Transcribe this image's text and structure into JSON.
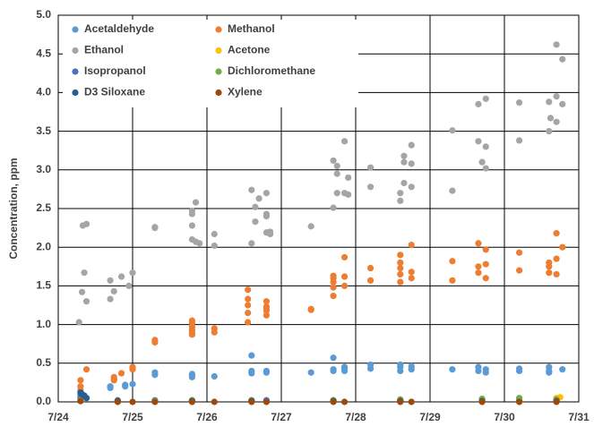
{
  "chart_data": {
    "type": "scatter",
    "y_label": "Concentration, ppm",
    "xlim": [
      0,
      7
    ],
    "xticks": [
      {
        "value": 0,
        "label": "7/24"
      },
      {
        "value": 1,
        "label": "7/25"
      },
      {
        "value": 2,
        "label": "7/26"
      },
      {
        "value": 3,
        "label": "7/27"
      },
      {
        "value": 4,
        "label": "7/28"
      },
      {
        "value": 5,
        "label": "7/29"
      },
      {
        "value": 6,
        "label": "7/30"
      },
      {
        "value": 7,
        "label": "7/31"
      }
    ],
    "ylim": [
      0,
      5
    ],
    "yticks": [
      {
        "value": 0,
        "label": "0.0"
      },
      0.5,
      {
        "value": 1,
        "label": "1.0"
      },
      1.5,
      {
        "value": 2,
        "label": "2.0"
      },
      2.5,
      {
        "value": 3,
        "label": "3.0"
      },
      3.5,
      {
        "value": 4,
        "label": "4.0"
      },
      4.5,
      {
        "value": 5,
        "label": "5.0"
      }
    ],
    "grid": true,
    "legend": "upper-left",
    "series": [
      {
        "name": "Acetaldehyde",
        "color": "#5b9bd5",
        "x": [
          0.3,
          0.3,
          0.7,
          0.7,
          0.9,
          0.9,
          1.0,
          1.3,
          1.3,
          1.8,
          1.8,
          1.8,
          2.1,
          2.6,
          2.6,
          2.6,
          2.8,
          2.8,
          3.4,
          3.7,
          3.7,
          3.7,
          3.85,
          3.85,
          3.85,
          4.2,
          4.2,
          4.6,
          4.6,
          4.6,
          4.75,
          4.75,
          5.3,
          5.65,
          5.65,
          5.75,
          5.75,
          6.2,
          6.2,
          6.6,
          6.6,
          6.6,
          6.78
        ],
        "values": [
          0.05,
          0.1,
          0.18,
          0.2,
          0.22,
          0.2,
          0.23,
          0.35,
          0.38,
          0.35,
          0.32,
          0.36,
          0.33,
          0.6,
          0.37,
          0.4,
          0.38,
          0.4,
          0.38,
          0.57,
          0.4,
          0.42,
          0.43,
          0.45,
          0.4,
          0.48,
          0.43,
          0.45,
          0.4,
          0.48,
          0.42,
          0.46,
          0.42,
          0.45,
          0.4,
          0.42,
          0.38,
          0.43,
          0.4,
          0.4,
          0.38,
          0.45,
          0.42
        ]
      },
      {
        "name": "Methanol",
        "color": "#ed7d31",
        "x": [
          0.38,
          0.3,
          0.3,
          0.3,
          0.75,
          0.75,
          0.75,
          0.85,
          1.0,
          1.0,
          1.3,
          1.3,
          1.8,
          1.8,
          1.8,
          1.8,
          1.8,
          1.8,
          2.1,
          2.1,
          2.55,
          2.55,
          2.55,
          2.55,
          2.55,
          2.8,
          2.8,
          2.8,
          2.8,
          2.8,
          3.4,
          3.4,
          3.7,
          3.7,
          3.7,
          3.7,
          3.7,
          3.85,
          3.85,
          3.85,
          4.2,
          4.2,
          4.6,
          4.6,
          4.6,
          4.6,
          4.6,
          4.75,
          4.75,
          4.75,
          5.3,
          5.3,
          5.65,
          5.65,
          5.65,
          5.75,
          5.75,
          5.75,
          6.2,
          6.2,
          6.6,
          6.6,
          6.6,
          6.7,
          6.7,
          6.7,
          6.78
        ],
        "values": [
          0.42,
          0.28,
          0.2,
          0.15,
          0.32,
          0.3,
          0.28,
          0.37,
          0.42,
          0.45,
          0.8,
          0.77,
          0.93,
          1.02,
          0.97,
          0.87,
          0.9,
          1.05,
          0.95,
          0.9,
          1.45,
          1.15,
          1.03,
          1.25,
          1.33,
          1.12,
          1.2,
          1.23,
          1.3,
          1.18,
          1.2,
          1.19,
          1.63,
          1.37,
          1.48,
          1.55,
          1.6,
          1.87,
          1.5,
          1.62,
          1.73,
          1.57,
          1.55,
          1.73,
          1.9,
          1.65,
          1.8,
          2.03,
          1.6,
          1.68,
          1.82,
          1.57,
          2.05,
          1.75,
          1.67,
          1.97,
          1.78,
          1.6,
          1.93,
          1.7,
          1.8,
          1.75,
          1.67,
          2.18,
          1.85,
          1.65,
          2.0
        ]
      },
      {
        "name": "Ethanol",
        "color": "#a5a5a5",
        "x": [
          0.28,
          0.32,
          0.38,
          0.35,
          0.33,
          0.38,
          0.7,
          0.7,
          0.75,
          0.85,
          0.95,
          1.0,
          1.3,
          1.3,
          1.8,
          1.8,
          1.8,
          1.8,
          1.85,
          1.85,
          1.9,
          2.1,
          2.1,
          2.6,
          2.6,
          2.65,
          2.65,
          2.7,
          2.8,
          2.8,
          2.8,
          2.8,
          2.85,
          2.85,
          3.4,
          3.7,
          3.7,
          3.75,
          3.75,
          3.75,
          3.85,
          3.9,
          3.85,
          3.9,
          4.2,
          4.2,
          4.6,
          4.6,
          4.65,
          4.65,
          4.65,
          4.75,
          4.75,
          4.75,
          5.3,
          5.3,
          5.65,
          5.65,
          5.7,
          5.75,
          5.75,
          5.75,
          6.2,
          6.2,
          6.6,
          6.6,
          6.62,
          6.7,
          6.7,
          6.7,
          6.78,
          6.78
        ],
        "values": [
          1.03,
          1.42,
          1.3,
          1.67,
          2.28,
          2.3,
          1.57,
          1.33,
          1.43,
          1.62,
          1.5,
          1.67,
          2.26,
          2.25,
          2.43,
          2.47,
          2.28,
          2.1,
          2.58,
          2.07,
          2.05,
          2.17,
          2.02,
          2.74,
          2.05,
          2.33,
          2.52,
          2.63,
          2.4,
          2.19,
          2.7,
          2.43,
          2.17,
          2.2,
          2.27,
          3.12,
          2.51,
          2.7,
          2.95,
          3.05,
          3.37,
          2.9,
          2.7,
          2.68,
          3.03,
          2.78,
          2.6,
          2.7,
          2.83,
          3.1,
          3.18,
          3.32,
          2.78,
          3.08,
          3.51,
          2.73,
          3.85,
          3.37,
          3.1,
          3.92,
          3.3,
          3.02,
          3.87,
          3.38,
          3.88,
          3.5,
          3.67,
          4.62,
          3.95,
          3.62,
          4.43,
          3.85
        ]
      },
      {
        "name": "Acetone",
        "color": "#ffc000",
        "x": [
          0.3,
          0.8,
          1.3,
          1.8,
          2.6,
          3.7,
          4.6,
          5.7,
          6.2,
          6.7,
          6.75
        ],
        "values": [
          0.01,
          0.01,
          0.01,
          0.01,
          0.02,
          0.02,
          0.03,
          0.03,
          0.02,
          0.05,
          0.06
        ]
      },
      {
        "name": "Isopropanol",
        "color": "#4472c4",
        "x": [
          0.3,
          0.35,
          0.8,
          1.3,
          1.8,
          2.6,
          2.8,
          3.7,
          4.6,
          5.7,
          6.2,
          6.7
        ],
        "values": [
          0.06,
          0.08,
          0.02,
          0.02,
          0.02,
          0.02,
          0.02,
          0.02,
          0.02,
          0.02,
          0.02,
          0.02
        ]
      },
      {
        "name": "Dichloromethane",
        "color": "#70ad47",
        "x": [
          0.3,
          0.8,
          1.3,
          1.8,
          2.6,
          3.7,
          4.6,
          5.7,
          6.2,
          6.7
        ],
        "values": [
          0.02,
          0.01,
          0.01,
          0.02,
          0.02,
          0.02,
          0.03,
          0.04,
          0.05,
          0.03
        ]
      },
      {
        "name": "D3 Siloxane",
        "color": "#255e91",
        "x": [
          0.3,
          0.32,
          0.35,
          0.38,
          0.8,
          1.8,
          2.6,
          3.7,
          4.6,
          5.7,
          6.7
        ],
        "values": [
          0.12,
          0.1,
          0.08,
          0.05,
          0.01,
          0.01,
          0.01,
          0.01,
          0.01,
          0.01,
          0.01
        ]
      },
      {
        "name": "Xylene",
        "color": "#9e480e",
        "x": [
          0.3,
          0.8,
          1.0,
          1.3,
          1.8,
          2.1,
          2.6,
          2.8,
          3.7,
          3.85,
          4.6,
          4.75,
          5.7,
          6.2,
          6.7
        ],
        "values": [
          0.01,
          0.0,
          0.0,
          0.0,
          0.0,
          0.0,
          0.0,
          0.0,
          0.0,
          0.0,
          0.0,
          0.0,
          0.0,
          0.0,
          0.0
        ]
      }
    ]
  }
}
